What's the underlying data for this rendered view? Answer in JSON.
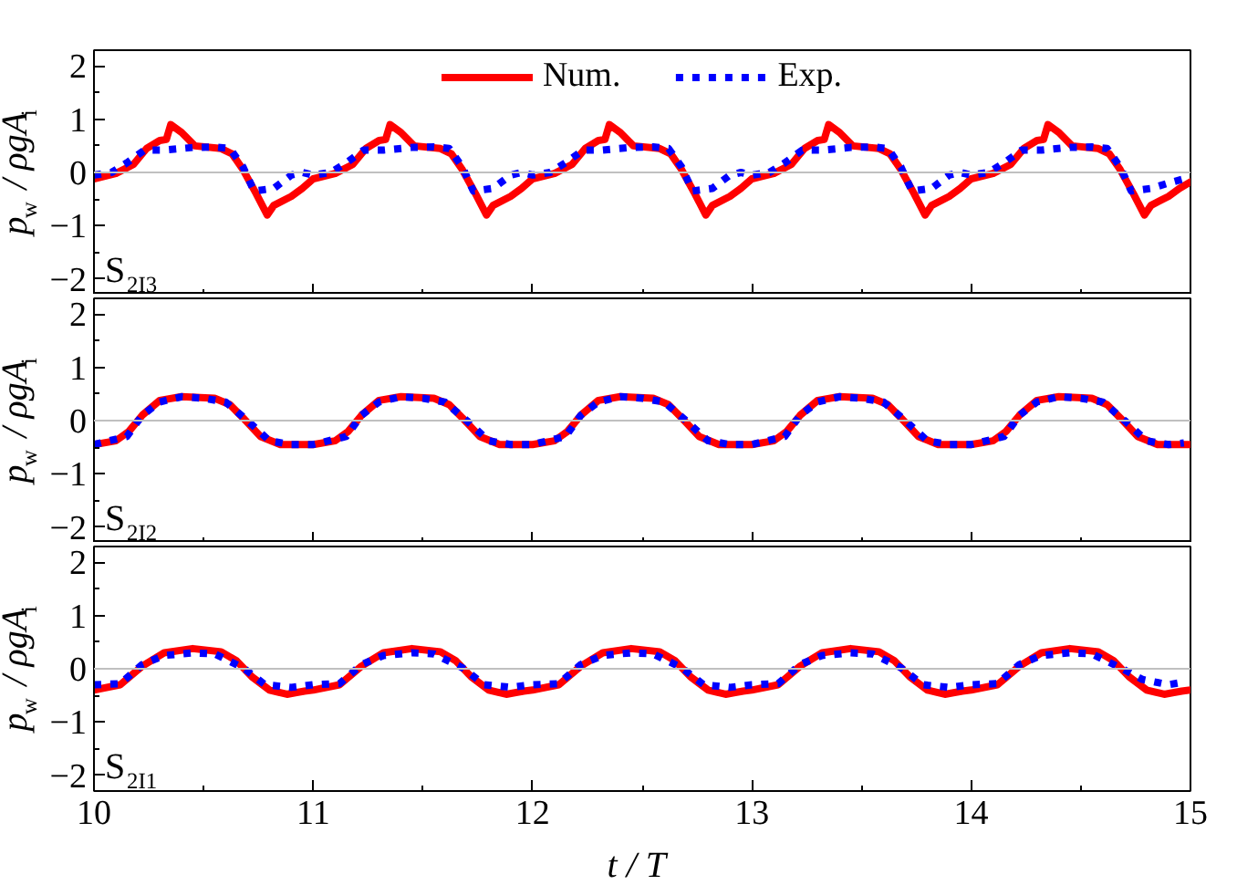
{
  "chart_data": [
    {
      "type": "line",
      "ylabel": "p$_{w}$ / ρgA$_{i}$",
      "annotations": [
        "S$_{2I3}$"
      ],
      "xlim": [
        10,
        15
      ],
      "xticks": [
        10,
        11,
        12,
        13,
        14,
        15
      ],
      "ylim": [
        -2.3,
        2.3
      ],
      "yticks": [
        -2,
        -1,
        0,
        1,
        2
      ],
      "tick_labels": "y",
      "legend": "top",
      "grid": false,
      "ref_lines": [
        {
          "axis": "y",
          "value": 0,
          "color": "#c0c0c0"
        }
      ],
      "series": [
        {
          "name": "Num.",
          "color": "#ff0000",
          "line_style": "solid",
          "x": [
            10.0,
            10.1,
            10.18,
            10.24,
            10.3,
            10.33,
            10.35,
            10.4,
            10.46,
            10.58,
            10.63,
            10.68,
            10.74,
            10.79,
            10.82,
            10.9,
            10.95,
            11.0,
            11.1,
            11.18,
            11.24,
            11.3,
            11.33,
            11.35,
            11.4,
            11.46,
            11.58,
            11.63,
            11.68,
            11.74,
            11.79,
            11.82,
            11.9,
            11.95,
            12.0,
            12.1,
            12.18,
            12.24,
            12.3,
            12.33,
            12.35,
            12.4,
            12.46,
            12.58,
            12.63,
            12.68,
            12.74,
            12.79,
            12.82,
            12.9,
            12.95,
            13.0,
            13.1,
            13.18,
            13.24,
            13.3,
            13.33,
            13.35,
            13.4,
            13.46,
            13.58,
            13.63,
            13.68,
            13.74,
            13.79,
            13.82,
            13.9,
            13.95,
            14.0,
            14.1,
            14.18,
            14.24,
            14.3,
            14.33,
            14.35,
            14.4,
            14.46,
            14.58,
            14.63,
            14.68,
            14.74,
            14.79,
            14.82,
            14.9,
            14.95,
            15.0
          ],
          "values": [
            -0.12,
            -0.02,
            0.15,
            0.45,
            0.6,
            0.62,
            0.9,
            0.75,
            0.5,
            0.45,
            0.35,
            0.05,
            -0.4,
            -0.8,
            -0.62,
            -0.45,
            -0.3,
            -0.12,
            -0.02,
            0.15,
            0.45,
            0.6,
            0.62,
            0.9,
            0.75,
            0.5,
            0.45,
            0.35,
            0.05,
            -0.4,
            -0.8,
            -0.62,
            -0.45,
            -0.3,
            -0.12,
            -0.02,
            0.15,
            0.45,
            0.6,
            0.62,
            0.9,
            0.75,
            0.5,
            0.45,
            0.35,
            0.05,
            -0.4,
            -0.8,
            -0.62,
            -0.45,
            -0.3,
            -0.12,
            -0.02,
            0.15,
            0.45,
            0.6,
            0.62,
            0.9,
            0.75,
            0.5,
            0.45,
            0.35,
            0.05,
            -0.4,
            -0.8,
            -0.62,
            -0.45,
            -0.3,
            -0.12,
            -0.02,
            0.15,
            0.45,
            0.6,
            0.62,
            0.9,
            0.75,
            0.5,
            0.45,
            0.35,
            0.05,
            -0.4,
            -0.8,
            -0.62,
            -0.45,
            -0.3,
            -0.18
          ]
        },
        {
          "name": "Exp.",
          "color": "#0000ff",
          "line_style": "dotted",
          "x": [
            10.0,
            10.08,
            10.15,
            10.23,
            10.32,
            10.45,
            10.55,
            10.62,
            10.68,
            10.73,
            10.82,
            10.9,
            10.95,
            11.0,
            11.08,
            11.15,
            11.23,
            11.32,
            11.45,
            11.55,
            11.62,
            11.68,
            11.73,
            11.82,
            11.9,
            11.95,
            12.0,
            12.08,
            12.15,
            12.23,
            12.32,
            12.45,
            12.55,
            12.62,
            12.68,
            12.73,
            12.82,
            12.9,
            12.95,
            13.0,
            13.08,
            13.15,
            13.23,
            13.32,
            13.45,
            13.55,
            13.62,
            13.68,
            13.73,
            13.82,
            13.9,
            13.95,
            14.0,
            14.08,
            14.15,
            14.23,
            14.32,
            14.45,
            14.55,
            14.62,
            14.68,
            14.73,
            14.82,
            14.9,
            14.97
          ],
          "values": [
            -0.05,
            0.0,
            0.18,
            0.42,
            0.42,
            0.47,
            0.48,
            0.45,
            0.1,
            -0.35,
            -0.3,
            -0.05,
            0.0,
            -0.05,
            0.0,
            0.18,
            0.42,
            0.42,
            0.47,
            0.48,
            0.45,
            0.1,
            -0.35,
            -0.3,
            -0.05,
            0.0,
            -0.05,
            0.0,
            0.18,
            0.42,
            0.42,
            0.47,
            0.48,
            0.45,
            0.1,
            -0.35,
            -0.3,
            -0.05,
            0.0,
            -0.05,
            0.0,
            0.18,
            0.42,
            0.42,
            0.47,
            0.48,
            0.45,
            0.1,
            -0.35,
            -0.3,
            -0.05,
            0.0,
            -0.05,
            0.0,
            0.18,
            0.42,
            0.42,
            0.47,
            0.48,
            0.45,
            0.1,
            -0.35,
            -0.3,
            -0.2,
            -0.12
          ]
        }
      ]
    },
    {
      "type": "line",
      "ylabel": "p$_{w}$ / ρgA$_{i}$",
      "annotations": [
        "S$_{2I2}$"
      ],
      "xlim": [
        10,
        15
      ],
      "xticks": [
        10,
        11,
        12,
        13,
        14,
        15
      ],
      "ylim": [
        -2.3,
        2.3
      ],
      "yticks": [
        -2,
        -1,
        0,
        1,
        2
      ],
      "tick_labels": "y",
      "grid": false,
      "ref_lines": [
        {
          "axis": "y",
          "value": 0,
          "color": "#c0c0c0"
        }
      ],
      "series": [
        {
          "color": "#ff0000",
          "line_style": "solid",
          "x": [
            10.0,
            10.1,
            10.16,
            10.22,
            10.3,
            10.4,
            10.55,
            10.62,
            10.68,
            10.76,
            10.85,
            10.95,
            11.0,
            11.1,
            11.16,
            11.22,
            11.3,
            11.4,
            11.55,
            11.62,
            11.68,
            11.76,
            11.85,
            11.95,
            12.0,
            12.1,
            12.16,
            12.22,
            12.3,
            12.4,
            12.55,
            12.62,
            12.68,
            12.76,
            12.85,
            12.95,
            13.0,
            13.1,
            13.16,
            13.22,
            13.3,
            13.4,
            13.55,
            13.62,
            13.68,
            13.76,
            13.85,
            13.95,
            14.0,
            14.1,
            14.16,
            14.22,
            14.3,
            14.4,
            14.55,
            14.62,
            14.68,
            14.76,
            14.85,
            14.95,
            15.0
          ],
          "values": [
            -0.45,
            -0.38,
            -0.2,
            0.1,
            0.38,
            0.45,
            0.42,
            0.3,
            0.05,
            -0.3,
            -0.45,
            -0.45,
            -0.45,
            -0.38,
            -0.2,
            0.1,
            0.38,
            0.45,
            0.42,
            0.3,
            0.05,
            -0.3,
            -0.45,
            -0.45,
            -0.45,
            -0.38,
            -0.2,
            0.1,
            0.38,
            0.45,
            0.42,
            0.3,
            0.05,
            -0.3,
            -0.45,
            -0.45,
            -0.45,
            -0.38,
            -0.2,
            0.1,
            0.38,
            0.45,
            0.42,
            0.3,
            0.05,
            -0.3,
            -0.45,
            -0.45,
            -0.45,
            -0.38,
            -0.2,
            0.1,
            0.38,
            0.45,
            0.42,
            0.3,
            0.05,
            -0.3,
            -0.45,
            -0.45,
            -0.45
          ]
        },
        {
          "color": "#0000ff",
          "line_style": "dotted",
          "x": [
            10.0,
            10.15,
            10.22,
            10.3,
            10.4,
            10.5,
            10.6,
            10.7,
            10.8,
            10.9,
            11.0,
            11.15,
            11.22,
            11.3,
            11.4,
            11.5,
            11.6,
            11.7,
            11.8,
            11.9,
            12.0,
            12.15,
            12.22,
            12.3,
            12.4,
            12.5,
            12.6,
            12.7,
            12.8,
            12.9,
            13.0,
            13.15,
            13.22,
            13.3,
            13.4,
            13.5,
            13.6,
            13.7,
            13.8,
            13.9,
            14.0,
            14.15,
            14.22,
            14.3,
            14.4,
            14.5,
            14.6,
            14.7,
            14.8,
            14.9,
            14.97
          ],
          "values": [
            -0.45,
            -0.3,
            0.1,
            0.35,
            0.45,
            0.42,
            0.35,
            0.0,
            -0.38,
            -0.45,
            -0.45,
            -0.3,
            0.1,
            0.35,
            0.45,
            0.42,
            0.35,
            0.0,
            -0.38,
            -0.45,
            -0.45,
            -0.3,
            0.1,
            0.35,
            0.45,
            0.42,
            0.35,
            0.0,
            -0.38,
            -0.45,
            -0.45,
            -0.3,
            0.1,
            0.35,
            0.45,
            0.42,
            0.35,
            0.0,
            -0.38,
            -0.45,
            -0.45,
            -0.3,
            0.1,
            0.35,
            0.45,
            0.42,
            0.35,
            0.0,
            -0.38,
            -0.45,
            -0.42
          ]
        }
      ]
    },
    {
      "type": "line",
      "ylabel": "p$_{w}$ / ρgA$_{i}$",
      "xlabel": "t / T",
      "annotations": [
        "S$_{2I1}$"
      ],
      "xlim": [
        10,
        15
      ],
      "xticks": [
        10,
        11,
        12,
        13,
        14,
        15
      ],
      "ylim": [
        -2.3,
        2.3
      ],
      "yticks": [
        -2,
        -1,
        0,
        1,
        2
      ],
      "grid": false,
      "ref_lines": [
        {
          "axis": "y",
          "value": 0,
          "color": "#c0c0c0"
        }
      ],
      "series": [
        {
          "color": "#ff0000",
          "line_style": "solid",
          "x": [
            10.0,
            10.12,
            10.22,
            10.32,
            10.45,
            10.58,
            10.65,
            10.72,
            10.8,
            10.88,
            10.96,
            11.0,
            11.12,
            11.22,
            11.32,
            11.45,
            11.58,
            11.65,
            11.72,
            11.8,
            11.88,
            11.96,
            12.0,
            12.12,
            12.22,
            12.32,
            12.45,
            12.58,
            12.65,
            12.72,
            12.8,
            12.88,
            12.96,
            13.0,
            13.12,
            13.22,
            13.32,
            13.45,
            13.58,
            13.65,
            13.72,
            13.8,
            13.88,
            13.96,
            14.0,
            14.12,
            14.22,
            14.32,
            14.45,
            14.58,
            14.65,
            14.72,
            14.8,
            14.88,
            14.96,
            15.0
          ],
          "values": [
            -0.4,
            -0.3,
            0.05,
            0.3,
            0.38,
            0.32,
            0.15,
            -0.15,
            -0.4,
            -0.48,
            -0.42,
            -0.4,
            -0.3,
            0.05,
            0.3,
            0.38,
            0.32,
            0.15,
            -0.15,
            -0.4,
            -0.48,
            -0.42,
            -0.4,
            -0.3,
            0.05,
            0.3,
            0.38,
            0.32,
            0.15,
            -0.15,
            -0.4,
            -0.48,
            -0.42,
            -0.4,
            -0.3,
            0.05,
            0.3,
            0.38,
            0.32,
            0.15,
            -0.15,
            -0.4,
            -0.48,
            -0.42,
            -0.4,
            -0.3,
            0.05,
            0.3,
            0.38,
            0.32,
            0.15,
            -0.15,
            -0.4,
            -0.48,
            -0.42,
            -0.4
          ]
        },
        {
          "color": "#0000ff",
          "line_style": "dotted",
          "x": [
            10.0,
            10.12,
            10.22,
            10.32,
            10.45,
            10.55,
            10.68,
            10.78,
            10.9,
            11.0,
            11.12,
            11.22,
            11.32,
            11.45,
            11.55,
            11.68,
            11.78,
            11.9,
            12.0,
            12.12,
            12.22,
            12.32,
            12.45,
            12.55,
            12.68,
            12.78,
            12.9,
            13.0,
            13.12,
            13.22,
            13.32,
            13.45,
            13.55,
            13.68,
            13.78,
            13.9,
            14.0,
            14.12,
            14.22,
            14.32,
            14.45,
            14.55,
            14.68,
            14.78,
            14.9,
            14.97
          ],
          "values": [
            -0.3,
            -0.28,
            0.08,
            0.25,
            0.3,
            0.28,
            0.02,
            -0.3,
            -0.35,
            -0.3,
            -0.28,
            0.08,
            0.25,
            0.3,
            0.28,
            0.02,
            -0.3,
            -0.35,
            -0.3,
            -0.28,
            0.08,
            0.25,
            0.3,
            0.28,
            0.02,
            -0.3,
            -0.35,
            -0.3,
            -0.28,
            0.08,
            0.25,
            0.3,
            0.28,
            0.02,
            -0.3,
            -0.35,
            -0.3,
            -0.28,
            0.08,
            0.25,
            0.3,
            0.28,
            0.02,
            -0.2,
            -0.3,
            -0.25
          ]
        }
      ]
    }
  ]
}
